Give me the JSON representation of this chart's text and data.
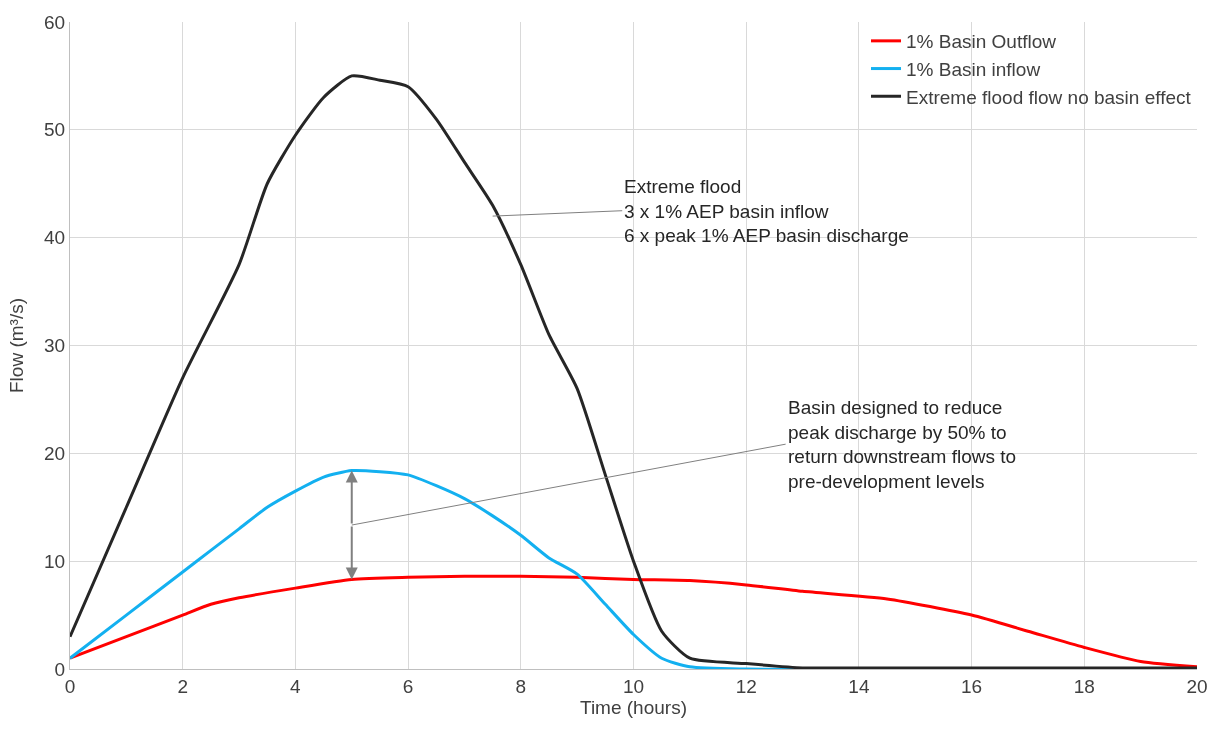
{
  "chart_data": {
    "type": "line",
    "xlabel": "Time (hours)",
    "ylabel": "Flow (m³/s)",
    "xlim": [
      0,
      20
    ],
    "xticks": [
      0,
      2,
      4,
      6,
      8,
      10,
      12,
      14,
      16,
      18,
      20
    ],
    "ylim": [
      0,
      60
    ],
    "yticks": [
      0,
      10,
      20,
      30,
      40,
      50,
      60
    ],
    "grid": true,
    "legend": "top right",
    "marker": "none",
    "line_style": "solid",
    "series": [
      {
        "name": "1% Basin Outflow",
        "color": "#ff0000",
        "x": [
          0,
          1,
          2,
          2.5,
          3,
          4,
          5,
          6,
          7,
          8,
          9,
          10,
          11,
          12,
          13,
          14.5,
          16,
          17,
          18,
          19,
          20
        ],
        "values": [
          1,
          3,
          5,
          6,
          6.6,
          7.5,
          8.3,
          8.5,
          8.6,
          8.6,
          8.5,
          8.3,
          8.2,
          7.8,
          7.2,
          6.5,
          5,
          3.5,
          2,
          0.7,
          0.2
        ]
      },
      {
        "name": "1% Basin inflow",
        "color": "#13b0f0",
        "x": [
          0,
          1,
          2,
          2.5,
          3,
          3.5,
          4,
          4.5,
          5,
          5.5,
          6,
          6.5,
          7,
          7.5,
          8,
          8.5,
          9,
          9.5,
          10,
          10.5,
          11,
          12,
          14
        ],
        "values": [
          1,
          5,
          9,
          11,
          13,
          15,
          16.5,
          17.8,
          18.4,
          18.3,
          18,
          17,
          15.8,
          14.2,
          12.4,
          10.3,
          8.8,
          6,
          3.2,
          1,
          0.2,
          0,
          0
        ]
      },
      {
        "name": "Extreme flood flow no basin effect",
        "color": "#262626",
        "x": [
          0,
          1,
          2,
          3,
          3.5,
          4,
          4.5,
          5,
          5.5,
          6,
          6.5,
          7,
          7.5,
          8,
          8.5,
          9,
          9.5,
          10,
          10.5,
          11,
          12,
          13,
          14,
          16,
          18,
          20
        ],
        "values": [
          3,
          15,
          27,
          37.5,
          45,
          49.5,
          53,
          55,
          54.6,
          54,
          51,
          47,
          43,
          37.5,
          31,
          26,
          18,
          10,
          3.5,
          1,
          0.5,
          0.1,
          0.1,
          0.1,
          0.1,
          0.1
        ]
      }
    ],
    "annotations": [
      {
        "text": "Extreme flood\n3 x 1% AEP basin inflow\n6 x peak 1% AEP basin discharge",
        "x": 7.5,
        "y": 42
      },
      "Basin designed to reduce\npeak discharge by 50% to\nreturn downstream flows to\npre-development levels"
    ]
  }
}
